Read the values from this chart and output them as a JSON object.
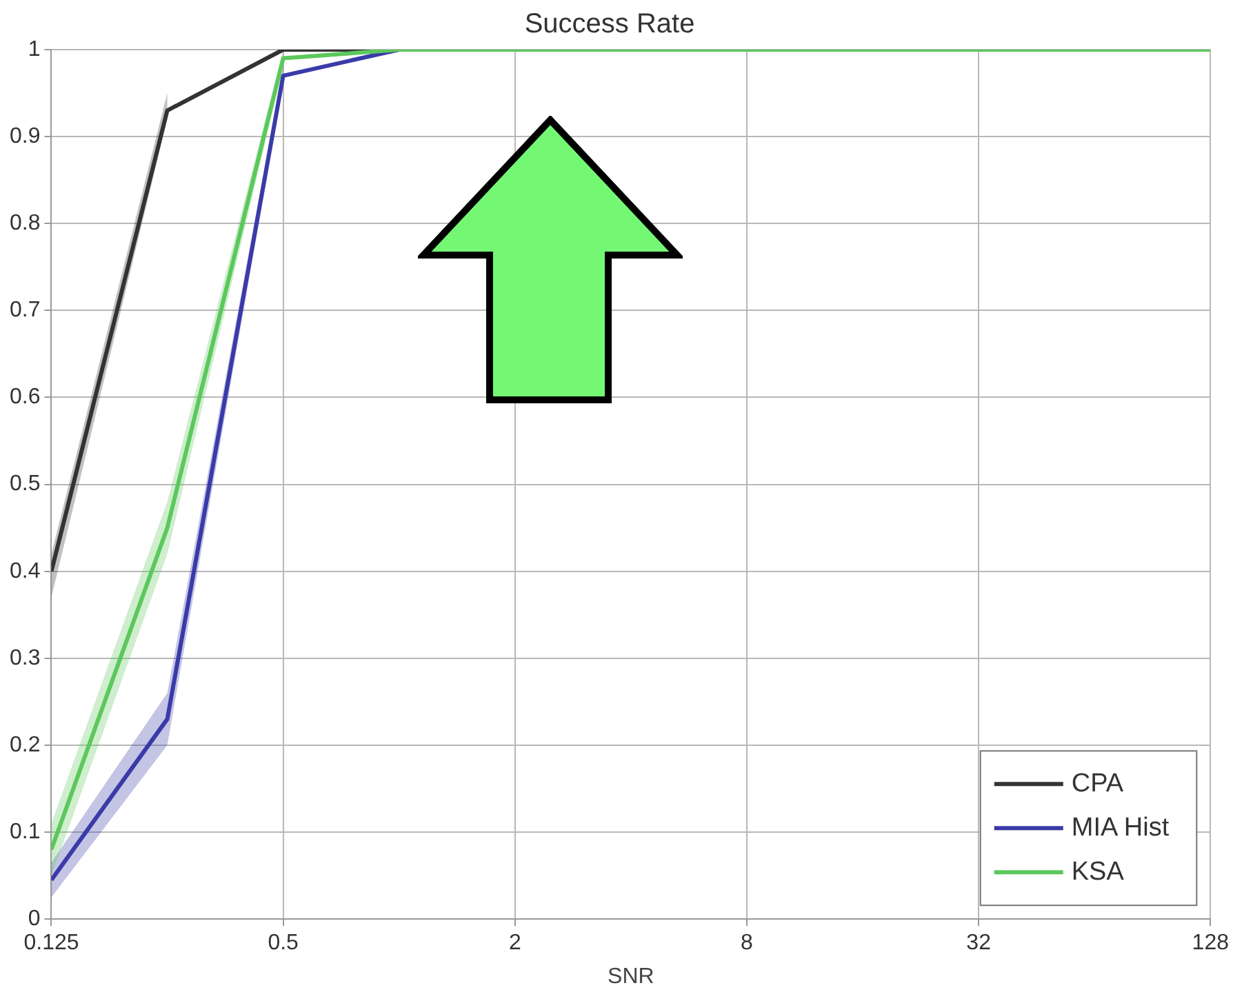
{
  "chart_data": {
    "type": "line",
    "title": "Success Rate",
    "xlabel": "SNR",
    "x": [
      0.125,
      0.25,
      0.5,
      1,
      2,
      4,
      8,
      16,
      32,
      64,
      128
    ],
    "series": [
      {
        "name": "CPA",
        "color": "#333333",
        "values": [
          0.4,
          0.93,
          1,
          1,
          null,
          null,
          null,
          null,
          null,
          null,
          null
        ],
        "lower": [
          0.37,
          0.92,
          null,
          null,
          null,
          null,
          null,
          null,
          null,
          null,
          null
        ],
        "upper": [
          0.42,
          0.95,
          null,
          null,
          null,
          null,
          null,
          null,
          null,
          null,
          null
        ]
      },
      {
        "name": "MIA Hist",
        "color": "#3a3aa8",
        "values": [
          0.045,
          0.23,
          0.97,
          1,
          null,
          null,
          null,
          null,
          null,
          null,
          null
        ],
        "lower": [
          0.025,
          0.2,
          0.96,
          null,
          null,
          null,
          null,
          null,
          null,
          null,
          null
        ],
        "upper": [
          0.065,
          0.26,
          0.98,
          null,
          null,
          null,
          null,
          null,
          null,
          null,
          null
        ]
      },
      {
        "name": "KSA",
        "color": "#5cc85c",
        "values": [
          0.08,
          0.45,
          0.99,
          1,
          1,
          1,
          1,
          1,
          1,
          1,
          1
        ],
        "lower": [
          0.05,
          0.42,
          0.98,
          null,
          null,
          null,
          null,
          null,
          null,
          null,
          null
        ],
        "upper": [
          0.11,
          0.48,
          1,
          null,
          null,
          null,
          null,
          null,
          null,
          null,
          null
        ]
      }
    ],
    "xlim": [
      0.125,
      128
    ],
    "xticks": [
      0.125,
      0.5,
      2,
      8,
      32,
      128
    ],
    "ylim": [
      0,
      1
    ],
    "yticks": [
      0,
      0.1,
      0.2,
      0.3,
      0.4,
      0.5,
      0.6,
      0.7,
      0.8,
      0.9,
      1
    ],
    "log": "x",
    "grid": true,
    "legend": "bottom right",
    "marker": "none",
    "line_style": "solid"
  }
}
